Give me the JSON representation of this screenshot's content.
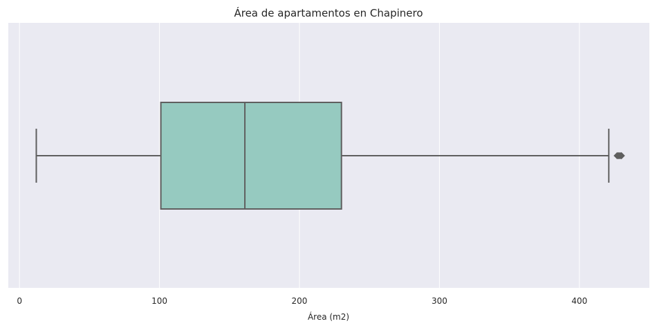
{
  "chart_data": {
    "type": "box",
    "title": "Área de apartamentos en Chapinero",
    "xlabel": "Área (m2)",
    "ylabel": "",
    "xlim": [
      -8,
      450
    ],
    "xticks": [
      0,
      100,
      200,
      300,
      400
    ],
    "orientation": "horizontal",
    "box": {
      "whisker_low": 12,
      "q1": 101,
      "median": 161,
      "q3": 230,
      "whisker_high": 421,
      "outliers": [
        427,
        428,
        429,
        430
      ]
    },
    "colors": {
      "background": "#eaeaf2",
      "grid": "#ffffff",
      "box_fill": "#96cac0",
      "line": "#5f5f5f"
    },
    "grid": true
  }
}
